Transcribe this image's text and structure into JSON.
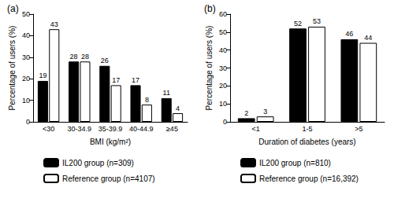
{
  "chart_data": [
    {
      "type": "bar",
      "title": "(a)",
      "x_label": "BMI (kg/m²)",
      "y_label": "Percentage of users (%)",
      "categories": [
        "<30",
        "30-34.9",
        "35-39.9",
        "40-44.9",
        "≥45"
      ],
      "series": [
        {
          "name": "IL200 group (n=309)",
          "color": "#000000",
          "values": [
            19,
            28,
            26,
            17,
            11
          ]
        },
        {
          "name": "Reference group (n=4107)",
          "color": "#ffffff",
          "values": [
            43,
            28,
            17,
            8,
            4
          ]
        }
      ],
      "ylim": [
        0,
        50
      ],
      "yticks": [
        0,
        10,
        20,
        30,
        40,
        50
      ],
      "grid": false,
      "data_labels": true,
      "legend": "bottom"
    },
    {
      "type": "bar",
      "title": "(b)",
      "x_label": "Duration of diabetes (years)",
      "y_label": "Percentage of users (%)",
      "categories": [
        "<1",
        "1-5",
        ">5"
      ],
      "series": [
        {
          "name": "IL200 group (n=810)",
          "color": "#000000",
          "values": [
            2,
            52,
            46
          ]
        },
        {
          "name": "Reference group (n=16,392)",
          "color": "#ffffff",
          "values": [
            3,
            53,
            44
          ]
        }
      ],
      "ylim": [
        0,
        60
      ],
      "yticks": [
        0,
        10,
        20,
        30,
        40,
        50,
        60
      ],
      "grid": false,
      "data_labels": true,
      "legend": "bottom"
    }
  ]
}
